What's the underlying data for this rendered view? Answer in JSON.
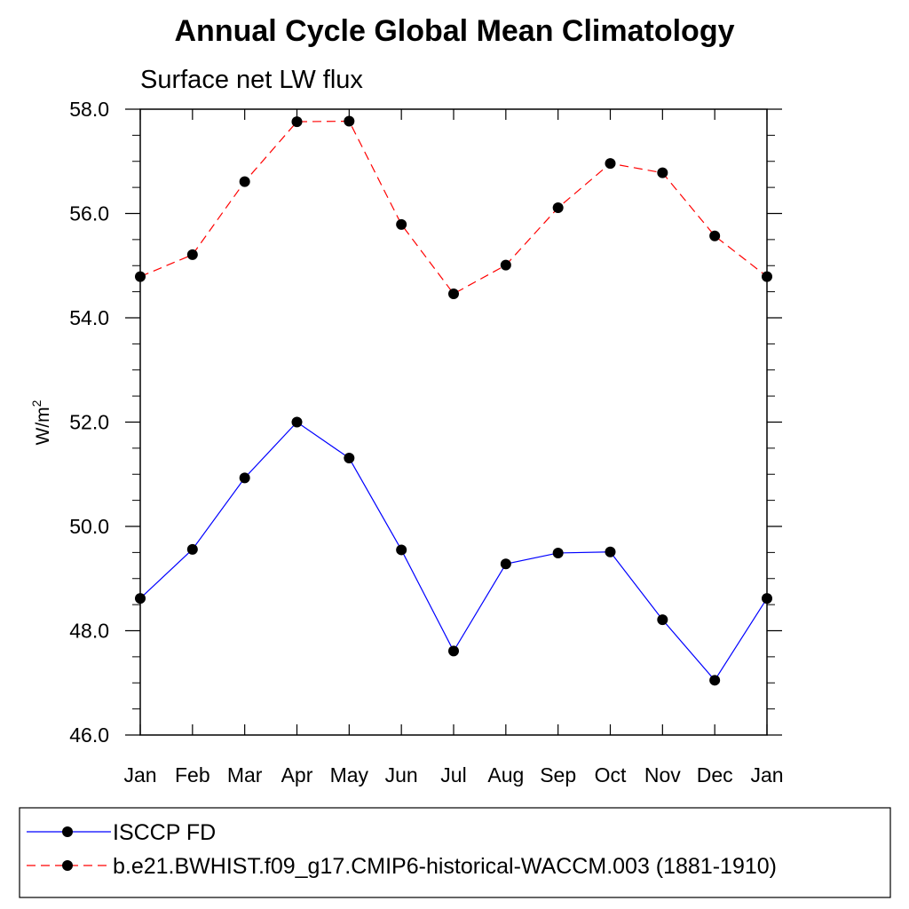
{
  "chart_data": {
    "type": "line",
    "title": "Annual Cycle Global Mean Climatology",
    "subtitle": "Surface net LW flux",
    "ylabel_base": "W/m",
    "ylabel_sup": "2",
    "xlabel": "",
    "categories": [
      "Jan",
      "Feb",
      "Mar",
      "Apr",
      "May",
      "Jun",
      "Jul",
      "Aug",
      "Sep",
      "Oct",
      "Nov",
      "Dec",
      "Jan"
    ],
    "ylim": [
      46.0,
      58.0
    ],
    "yticks": [
      "46.0",
      "48.0",
      "50.0",
      "52.0",
      "54.0",
      "56.0",
      "58.0"
    ],
    "grid": false,
    "legend_position": "bottom",
    "series": [
      {
        "name": "ISCCP FD",
        "color": "#0000ff",
        "dash": "solid",
        "values": [
          48.62,
          49.56,
          50.93,
          52.0,
          51.31,
          49.55,
          47.61,
          49.28,
          49.49,
          49.51,
          48.21,
          47.05,
          48.62
        ]
      },
      {
        "name": "b.e21.BWHIST.f09_g17.CMIP6-historical-WACCM.003 (1881-1910)",
        "color": "#ff0000",
        "dash": "dashed",
        "values": [
          54.79,
          55.21,
          56.61,
          57.76,
          57.77,
          55.79,
          54.46,
          55.01,
          56.11,
          56.96,
          56.78,
          55.57,
          54.79
        ]
      }
    ]
  }
}
